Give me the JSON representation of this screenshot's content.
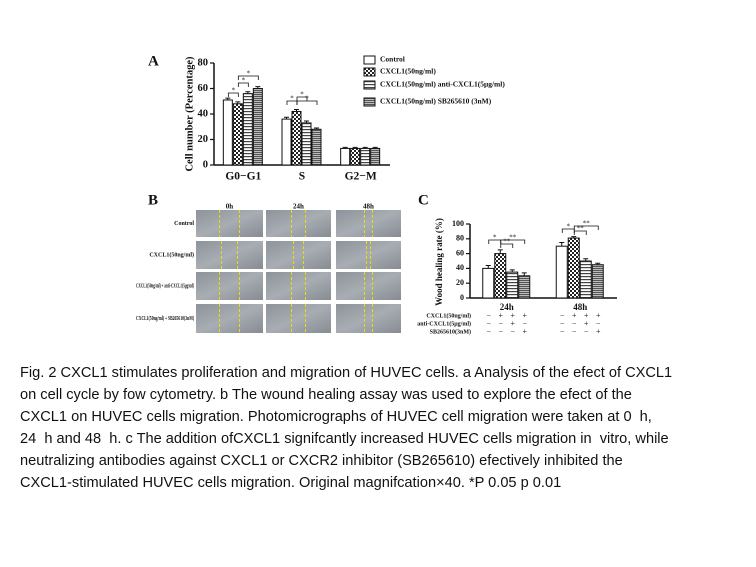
{
  "panel_a": {
    "letter": "A",
    "chart_data": {
      "type": "bar",
      "y_label": "Cell number (Percentage)",
      "categories": [
        "G0−G1",
        "S",
        "G2−M"
      ],
      "series": [
        {
          "name": "Control",
          "color": "#ffffff",
          "pattern": "none",
          "values": [
            51,
            36,
            13
          ],
          "errors": [
            1.5,
            1.5,
            0.8
          ]
        },
        {
          "name": "CXCL1(50ng/ml)",
          "color": "#222222",
          "pattern": "checker",
          "values": [
            48,
            42,
            13
          ],
          "errors": [
            1.5,
            1.5,
            0.8
          ]
        },
        {
          "name": "CXCL1(50ng/ml) anti-CXCL1(5μg/ml)",
          "color": "#444444",
          "pattern": "stripes",
          "values": [
            56,
            33,
            13
          ],
          "errors": [
            1.5,
            1.5,
            0.8
          ]
        },
        {
          "name": "CXCL1(50ng/ml) SB265610 (3nM)",
          "color": "#555555",
          "pattern": "dense",
          "values": [
            60,
            28,
            13
          ],
          "errors": [
            1.5,
            1,
            0.8
          ]
        }
      ],
      "ylim": [
        0,
        80
      ],
      "yticks": [
        0,
        20,
        40,
        60,
        80
      ],
      "annotations": [
        "*",
        "*",
        "*",
        "*",
        "*",
        "*"
      ]
    }
  },
  "panel_b": {
    "letter": "B",
    "columns": [
      "0h",
      "24h",
      "48h"
    ],
    "rows": [
      "Control",
      "CXCL1(50ng/ml)",
      "CXCL1(50ng/ml) + anti-CXCL1(5μg/ml)",
      "CXCL1(50ng/ml) + SB265610(3nM)"
    ]
  },
  "panel_c": {
    "letter": "C",
    "chart_data": {
      "type": "bar",
      "y_label": "Wood healing rate (%)",
      "categories": [
        "24h",
        "48h"
      ],
      "series": [
        {
          "color": "#ffffff",
          "pattern": "none",
          "values": [
            40,
            70
          ],
          "errors": [
            4,
            5
          ]
        },
        {
          "color": "#222222",
          "pattern": "checker",
          "values": [
            60,
            81
          ],
          "errors": [
            5,
            2
          ]
        },
        {
          "color": "#444444",
          "pattern": "stripes",
          "values": [
            35,
            50
          ],
          "errors": [
            3,
            3
          ]
        },
        {
          "color": "#555555",
          "pattern": "dense",
          "values": [
            30,
            45
          ],
          "errors": [
            4,
            2
          ]
        }
      ],
      "ylim": [
        0,
        100
      ],
      "yticks": [
        0,
        20,
        40,
        60,
        80,
        100
      ],
      "annotations": [
        "*",
        "**",
        "**",
        "*",
        "**",
        "**"
      ],
      "table": [
        {
          "label": "CXCL1(50ng/ml)",
          "signs": [
            "−",
            "+",
            "+",
            "+",
            "−",
            "+",
            "+",
            "+"
          ]
        },
        {
          "label": "anti-CXCL1(5μg/ml)",
          "signs": [
            "−",
            "−",
            "+",
            "−",
            "−",
            "−",
            "+",
            "−"
          ]
        },
        {
          "label": "SB265610(3nM)",
          "signs": [
            "−",
            "−",
            "−",
            "+",
            "−",
            "−",
            "−",
            "+"
          ]
        }
      ]
    }
  },
  "caption": {
    "lines": [
      "Fig. 2 CXCL1 stimulates proliferation and migration of HUVEC cells. a Analysis of the efect of CXCL1",
      "on cell cycle by fow cytometry. b The wound healing assay was used to explore the efect of the",
      "CXCL1 on HUVEC cells migration. Photomicrographs of HUVEC cell migration were taken at 0  h,",
      "24  h and 48  h. c The addition ofCXCL1 signifcantly increased HUVEC cells migration in  vitro, while",
      "neutralizing antibodies against CXCL1 or CXCR2 inhibitor (SB265610) efectively inhibited the",
      "CXCL1-stimulated HUVEC cells migration. Original magnifcation×40. *P 0.05 p 0.01"
    ]
  }
}
